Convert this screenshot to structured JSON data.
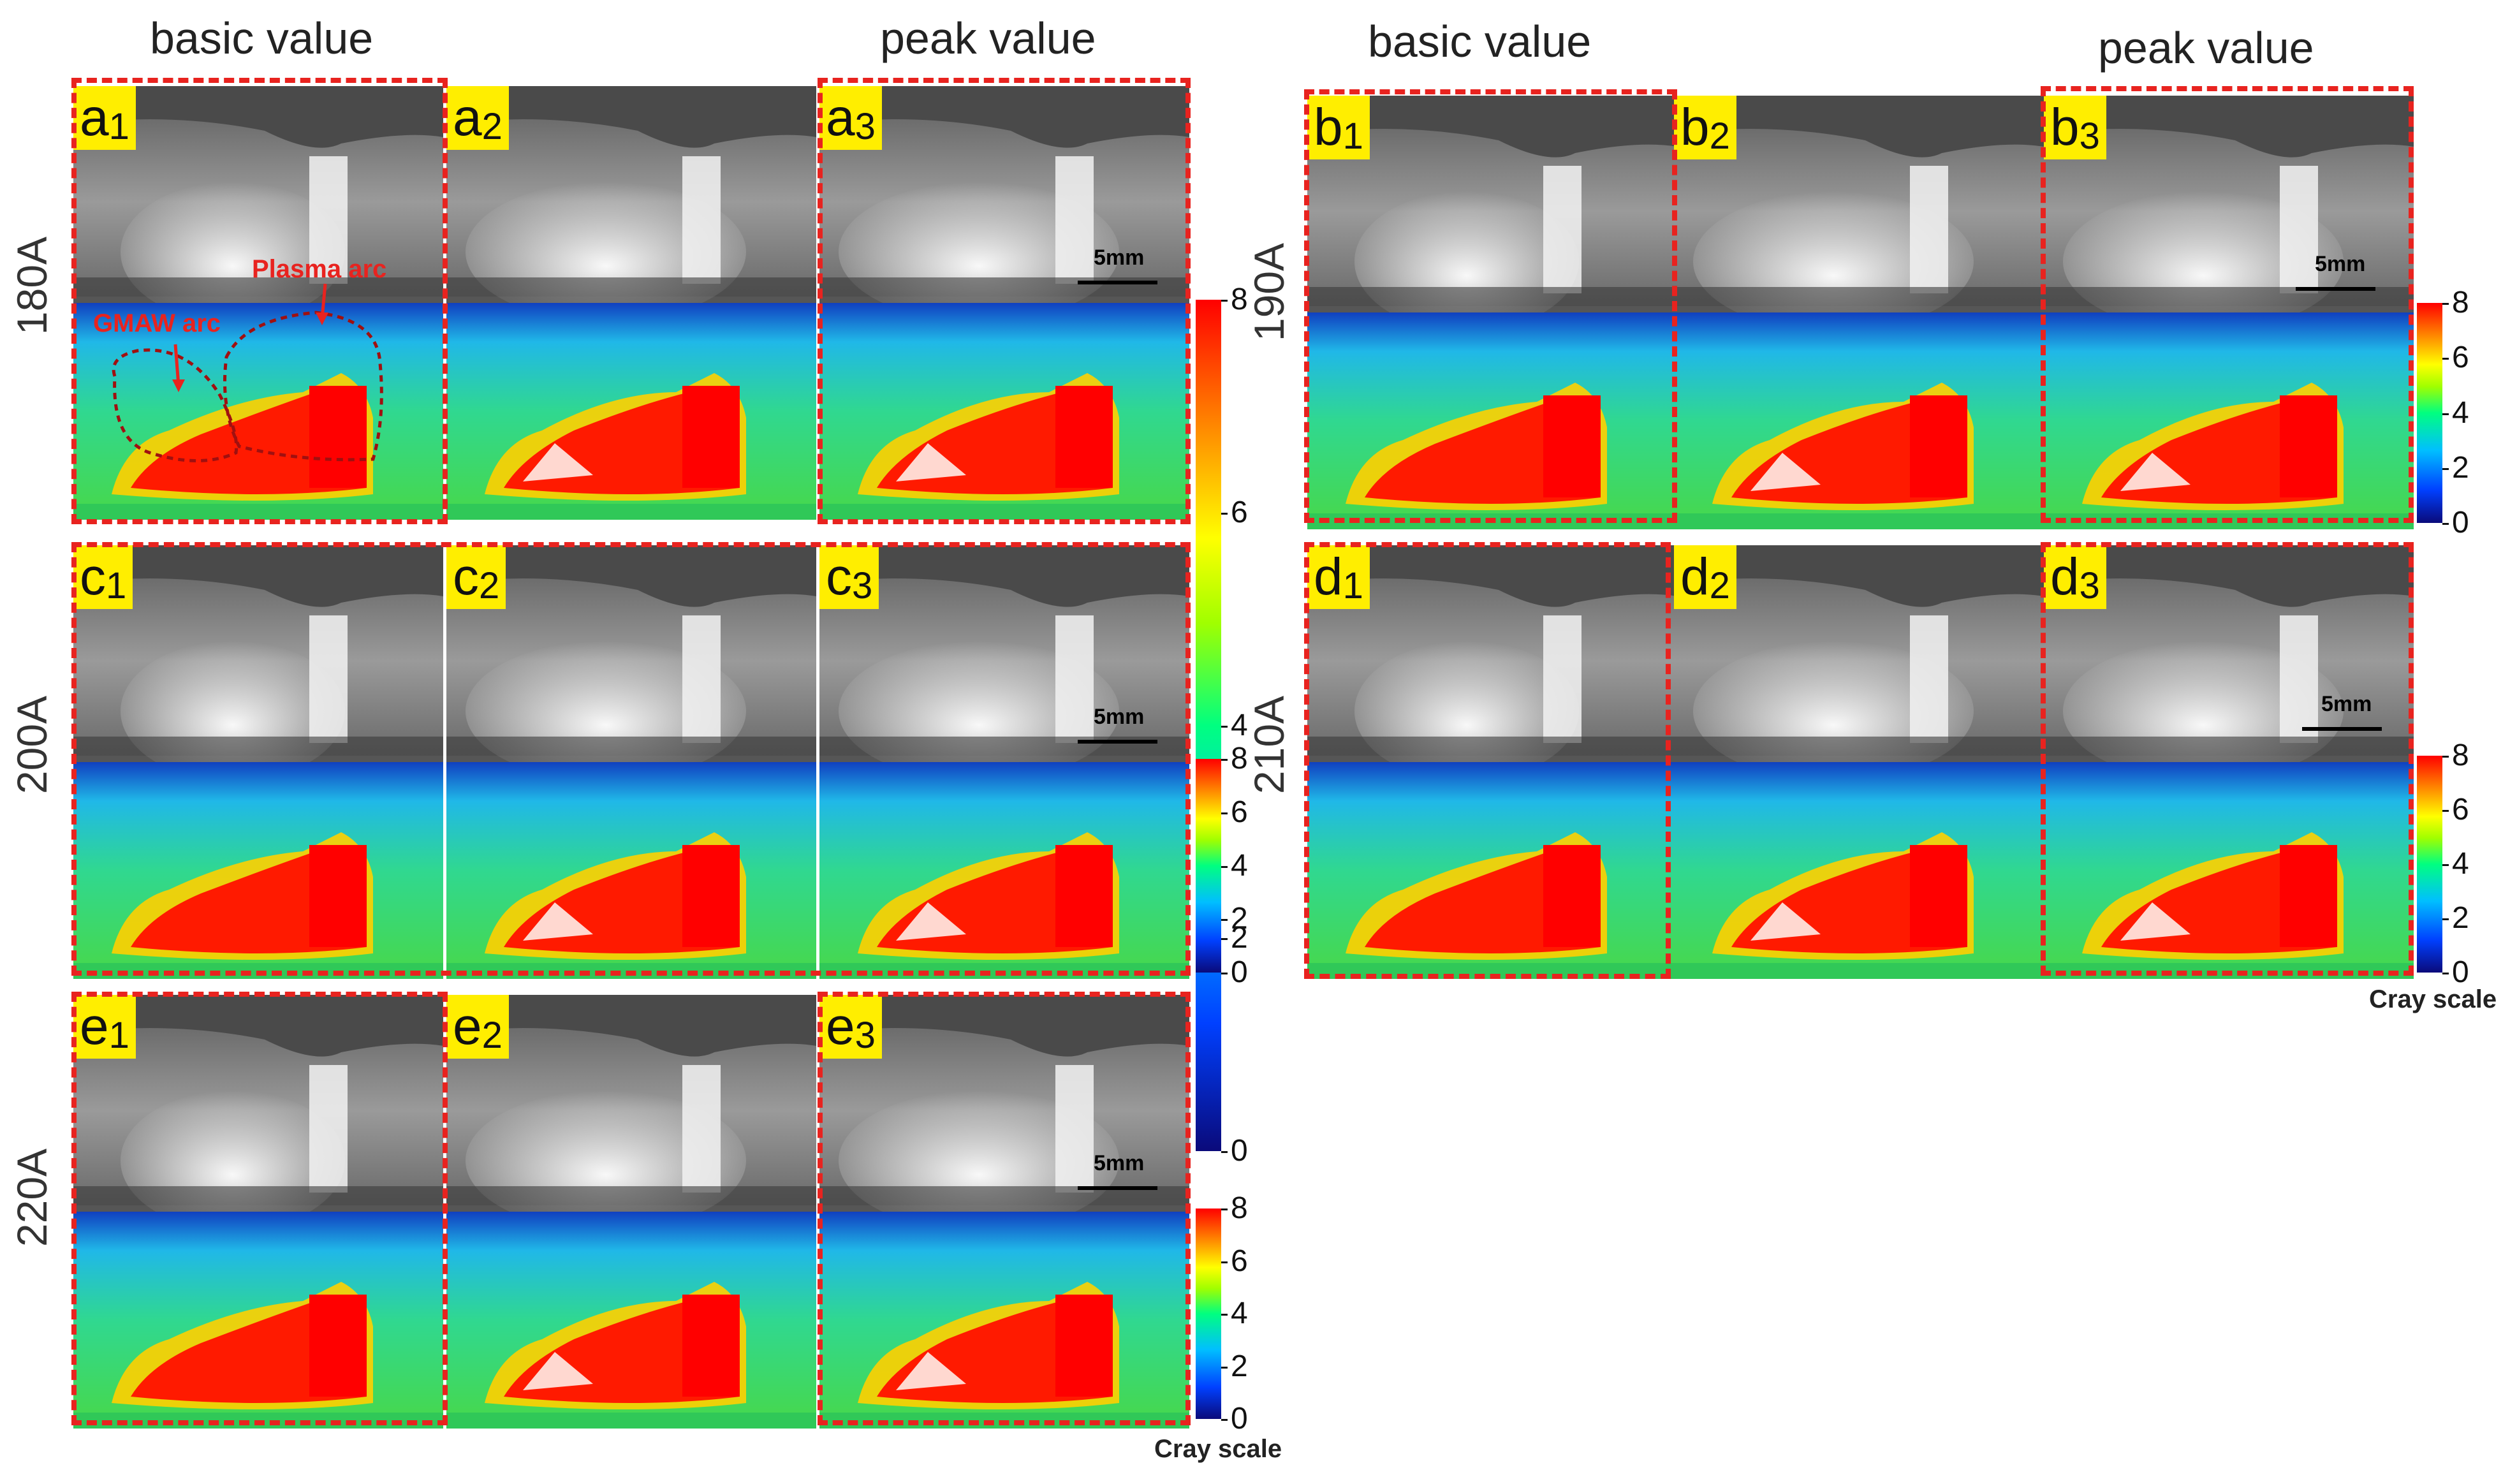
{
  "headers": {
    "left_basic": "basic value",
    "left_peak": "peak value",
    "right_basic": "basic value",
    "right_peak": "peak value"
  },
  "currents": {
    "a": "180A",
    "b": "190A",
    "c": "200A",
    "d": "210A",
    "e": "220A"
  },
  "panels": {
    "a1": {
      "letter": "a",
      "num": "1"
    },
    "a2": {
      "letter": "a",
      "num": "2"
    },
    "a3": {
      "letter": "a",
      "num": "3"
    },
    "b1": {
      "letter": "b",
      "num": "1"
    },
    "b2": {
      "letter": "b",
      "num": "2"
    },
    "b3": {
      "letter": "b",
      "num": "3"
    },
    "c1": {
      "letter": "c",
      "num": "1"
    },
    "c2": {
      "letter": "c",
      "num": "2"
    },
    "c3": {
      "letter": "c",
      "num": "3"
    },
    "d1": {
      "letter": "d",
      "num": "1"
    },
    "d2": {
      "letter": "d",
      "num": "2"
    },
    "d3": {
      "letter": "d",
      "num": "3"
    },
    "e1": {
      "letter": "e",
      "num": "1"
    },
    "e2": {
      "letter": "e",
      "num": "2"
    },
    "e3": {
      "letter": "e",
      "num": "3"
    }
  },
  "scale_bar_label": "5mm",
  "colorbar": {
    "ticks": [
      "8",
      "6",
      "4",
      "2",
      "0"
    ],
    "caption": "Cray scale",
    "colors": [
      "#0a0a7a",
      "#0040ff",
      "#00bfff",
      "#00ff80",
      "#ffff00",
      "#ff8000",
      "#ff0000"
    ]
  },
  "annotations": {
    "gmaw": "GMAW arc",
    "plasma": "Plasma arc"
  }
}
